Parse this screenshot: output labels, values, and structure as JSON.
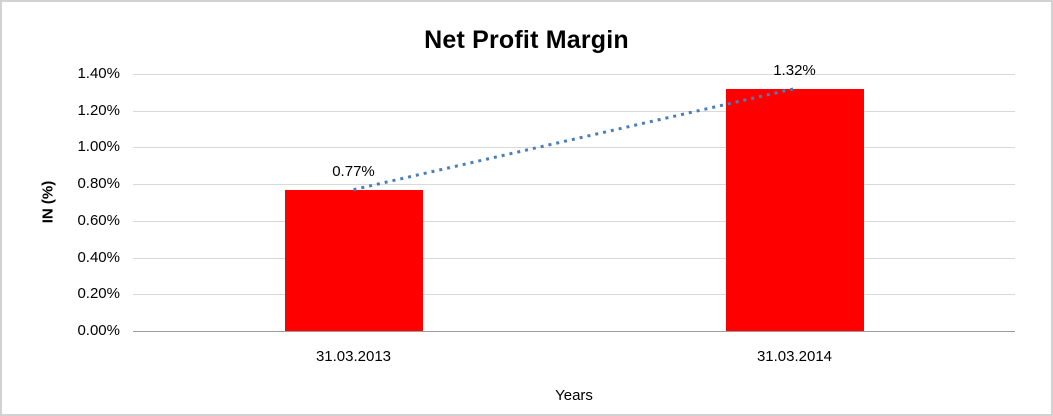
{
  "figure": {
    "background": "#ffffff",
    "border_color": "#d2d2d2"
  },
  "chart_data": {
    "type": "bar",
    "title": "Net Profit Margin",
    "xlabel": "Years",
    "ylabel": "IN (%)",
    "categories": [
      "31.03.2013",
      "31.03.2014"
    ],
    "values": [
      0.77,
      1.32
    ],
    "data_labels": [
      "0.77%",
      "1.32%"
    ],
    "ylim": [
      0,
      1.4
    ],
    "y_ticks": [
      {
        "value": 0.0,
        "label": "0.00%"
      },
      {
        "value": 0.2,
        "label": "0.20%"
      },
      {
        "value": 0.4,
        "label": "0.40%"
      },
      {
        "value": 0.6,
        "label": "0.60%"
      },
      {
        "value": 0.8,
        "label": "0.80%"
      },
      {
        "value": 1.0,
        "label": "1.00%"
      },
      {
        "value": 1.2,
        "label": "1.20%"
      },
      {
        "value": 1.4,
        "label": "1.40%"
      }
    ],
    "grid": true,
    "legend": "none",
    "bar_color": "#ff0000",
    "gridline_color": "#d9d9d9",
    "axis_line_color": "#9b9b9b",
    "text_color": "#000000",
    "trendline": {
      "type": "linear",
      "style": "dotted",
      "color": "#4a7ebb",
      "connects": [
        "31.03.2013",
        "31.03.2014"
      ]
    }
  }
}
